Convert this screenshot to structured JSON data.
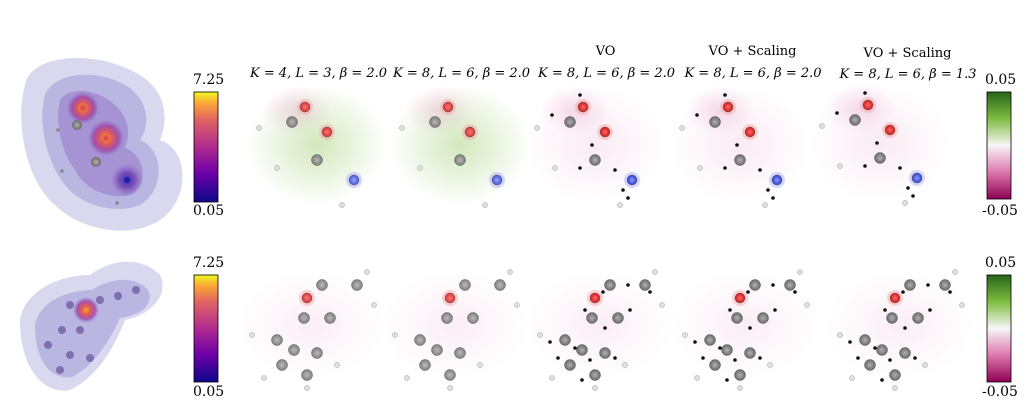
{
  "columns": [
    {
      "title": "",
      "params": "K = 4, L = 3, β = 2.0"
    },
    {
      "title": "",
      "params": "K = 8, L = 6, β = 2.0"
    },
    {
      "title": "VO",
      "params": "K = 8, L = 6, β = 2.0"
    },
    {
      "title": "VO + Scaling",
      "params": "K = 8, L = 6, β = 2.0"
    },
    {
      "title": "VO + Scaling",
      "params": "K = 8, L = 6, β = 1.3"
    }
  ],
  "density_colorbar": {
    "max": "7.25",
    "min": "0.05",
    "colormap": "plasma"
  },
  "difference_colorbar": {
    "max": "0.05",
    "min": "-0.05",
    "colormap": "PiYG"
  },
  "atom_colors": {
    "carbon": "#8a8a8a",
    "oxygen": "#e63030",
    "nitrogen": "#5060e0",
    "hydrogen": "#d8d8d8",
    "virtual": "#111111"
  }
}
